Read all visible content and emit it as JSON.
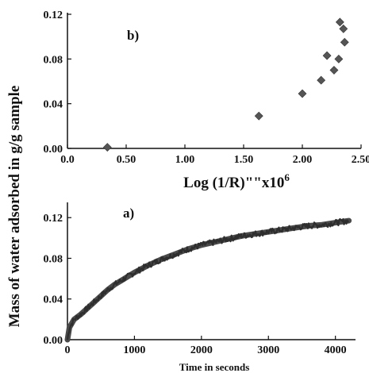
{
  "figure": {
    "shared_ylabel": "Mass of water adsorbed in g/g sample"
  },
  "chart_data": [
    {
      "type": "scatter",
      "panel_label": "b)",
      "xlabel": "Log (1/R)\"\"x10",
      "xlabel_exponent": "6",
      "xlim": [
        0.0,
        2.5
      ],
      "ylim": [
        0.0,
        0.12
      ],
      "xticks": [
        "0.0",
        "0.50",
        "1.00",
        "1.50",
        "2.00",
        "2.50"
      ],
      "yticks": [
        "0.00",
        "0.04",
        "0.08",
        "0.12"
      ],
      "marker": "diamond",
      "color": "#555555",
      "points": [
        {
          "x": 0.34,
          "y": 0.001
        },
        {
          "x": 1.63,
          "y": 0.029
        },
        {
          "x": 2.0,
          "y": 0.049
        },
        {
          "x": 2.16,
          "y": 0.061
        },
        {
          "x": 2.21,
          "y": 0.083
        },
        {
          "x": 2.27,
          "y": 0.07
        },
        {
          "x": 2.31,
          "y": 0.08
        },
        {
          "x": 2.32,
          "y": 0.113
        },
        {
          "x": 2.35,
          "y": 0.107
        },
        {
          "x": 2.36,
          "y": 0.095
        }
      ]
    },
    {
      "type": "line",
      "panel_label": "a)",
      "xlabel": "Time in seconds",
      "xlim": [
        0,
        4300
      ],
      "ylim": [
        0.0,
        0.135
      ],
      "xticks": [
        "0",
        "1000",
        "2000",
        "3000",
        "4000"
      ],
      "yticks": [
        "0.00",
        "0.04",
        "0.08",
        "0.12"
      ],
      "color": "#4a4a4a",
      "series": [
        {
          "x": [
            0,
            30,
            100,
            200,
            300,
            400,
            500,
            600,
            700,
            800,
            900,
            1000,
            1200,
            1400,
            1600,
            1800,
            2000,
            2200,
            2400,
            2600,
            2800,
            3000,
            3200,
            3400,
            3600,
            3800,
            4000,
            4200
          ],
          "y": [
            0.0,
            0.012,
            0.02,
            0.025,
            0.031,
            0.037,
            0.043,
            0.049,
            0.054,
            0.058,
            0.062,
            0.066,
            0.073,
            0.079,
            0.084,
            0.089,
            0.093,
            0.096,
            0.099,
            0.102,
            0.104,
            0.106,
            0.108,
            0.11,
            0.112,
            0.113,
            0.115,
            0.117
          ]
        }
      ]
    }
  ]
}
